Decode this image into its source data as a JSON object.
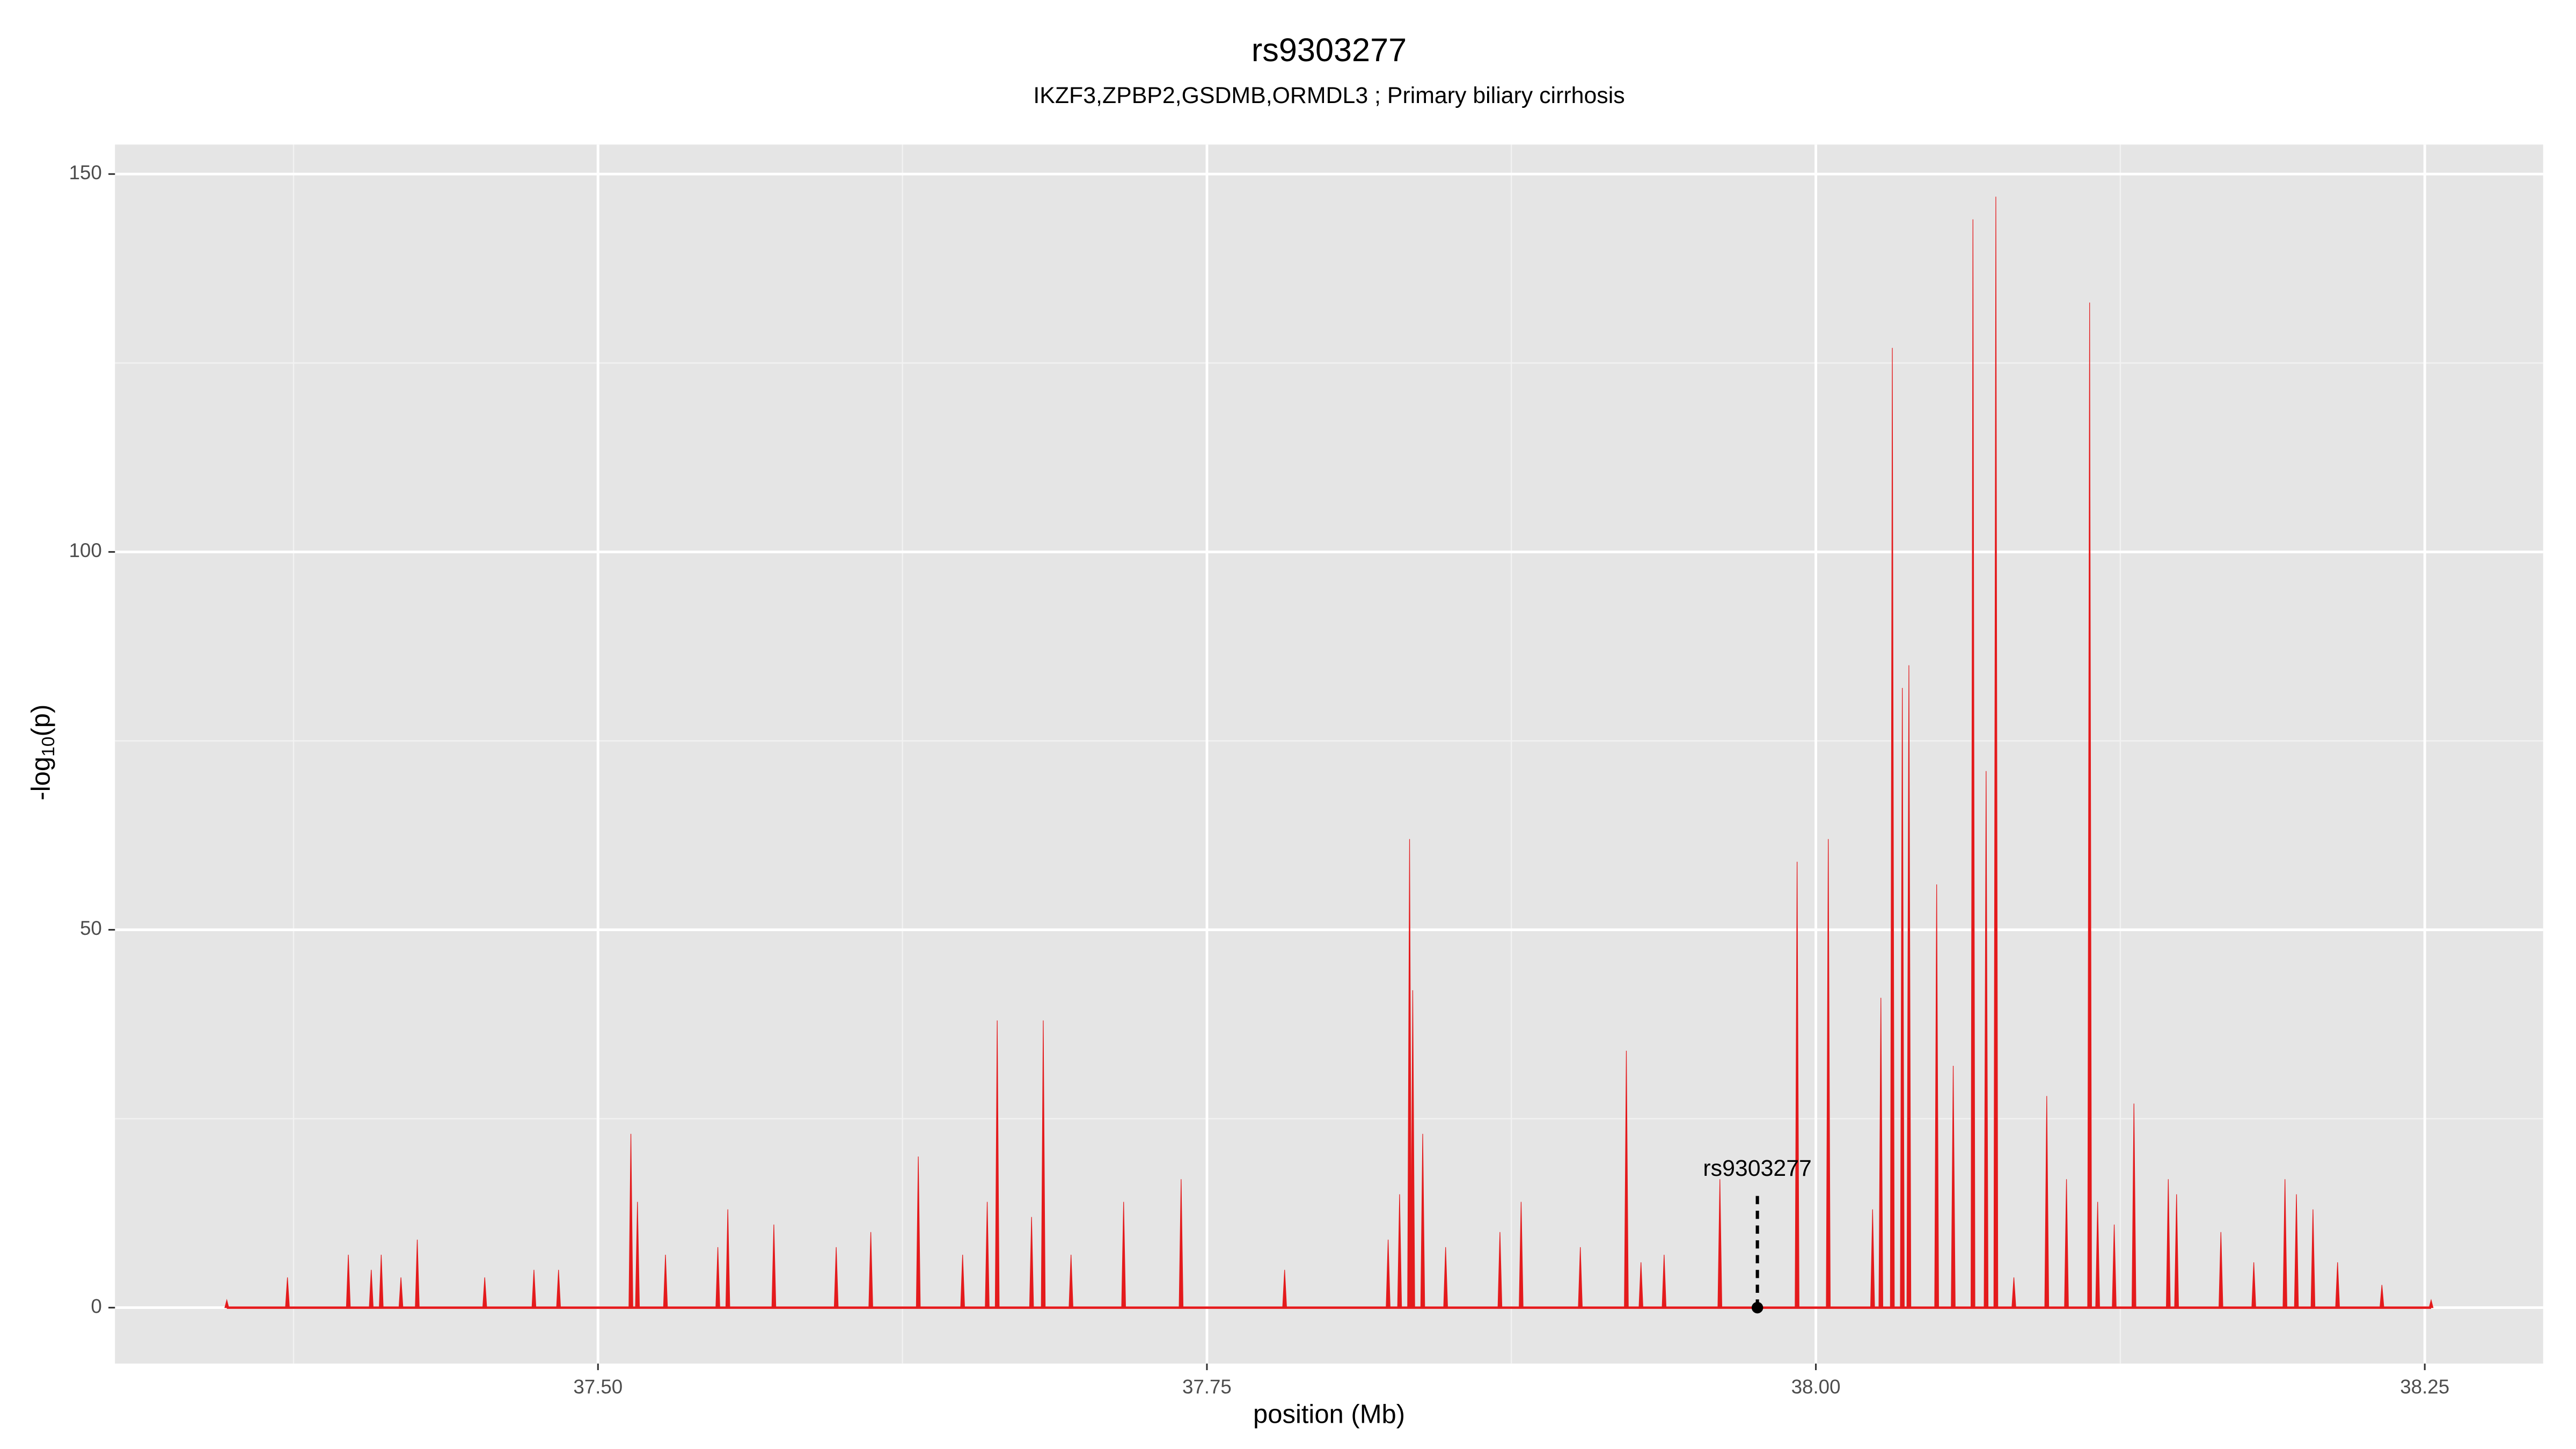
{
  "chart_data": {
    "type": "spike",
    "title": "rs9303277",
    "subtitle": "IKZF3,ZPBP2,GSDMB,ORMDL3 ; Primary biliary cirrhosis",
    "x_label": "position (Mb)",
    "y_label": {
      "prefix": "-log",
      "sub": "10",
      "suffix": "(p)"
    },
    "color": "#e41a1c",
    "panel_color": "#e5e5e5",
    "grid": true,
    "xlim": [
      37.3017,
      38.2986
    ],
    "ylim": [
      -7.4,
      153.9
    ],
    "xticks": [
      {
        "value": 37.5,
        "label": "37.50"
      },
      37.75,
      {
        "value": 38.0,
        "label": "38.00"
      },
      38.25
    ],
    "xminor": [
      37.375,
      37.625,
      37.875,
      38.125
    ],
    "yticks": [
      0,
      50,
      100,
      150
    ],
    "yminor": [
      25,
      75,
      125
    ],
    "x": [
      37.3476,
      37.3725,
      37.3975,
      37.4069,
      37.411,
      37.4191,
      37.4258,
      37.4535,
      37.4737,
      37.4838,
      37.5135,
      37.5162,
      37.5277,
      37.5492,
      37.5533,
      37.5722,
      37.5978,
      37.612,
      37.6315,
      37.6497,
      37.6598,
      37.6639,
      37.678,
      37.6828,
      37.6942,
      37.7158,
      37.7394,
      37.7819,
      37.8244,
      37.8291,
      37.8332,
      37.8345,
      37.8386,
      37.848,
      37.8703,
      37.879,
      37.9033,
      37.9222,
      37.9282,
      37.9377,
      37.9606,
      37.9923,
      38.0051,
      38.0233,
      38.0267,
      38.0314,
      38.0355,
      38.0382,
      38.0496,
      38.0564,
      38.0645,
      38.0699,
      38.0739,
      38.0813,
      38.0948,
      38.1029,
      38.1124,
      38.1157,
      38.1225,
      38.1306,
      38.1447,
      38.1481,
      38.1663,
      38.1798,
      38.1926,
      38.1973,
      38.2041,
      38.2142,
      38.2324,
      38.2526
    ],
    "values": [
      1,
      4,
      7,
      5,
      7,
      4,
      9,
      4,
      5,
      5,
      23,
      14,
      7,
      8,
      13,
      11,
      8,
      10,
      20,
      7,
      14,
      38,
      12,
      38,
      7,
      14,
      17,
      5,
      9,
      15,
      62,
      42,
      23,
      8,
      10,
      14,
      8,
      34,
      6,
      7,
      17,
      59,
      62,
      13,
      41,
      127,
      82,
      85,
      56,
      32,
      144,
      71,
      147,
      4,
      28,
      17,
      133,
      14,
      11,
      27,
      17,
      15,
      10,
      6,
      17,
      15,
      13,
      6,
      3,
      1
    ],
    "annotation": {
      "label": "rs9303277",
      "x": 37.976,
      "y": 0
    }
  }
}
